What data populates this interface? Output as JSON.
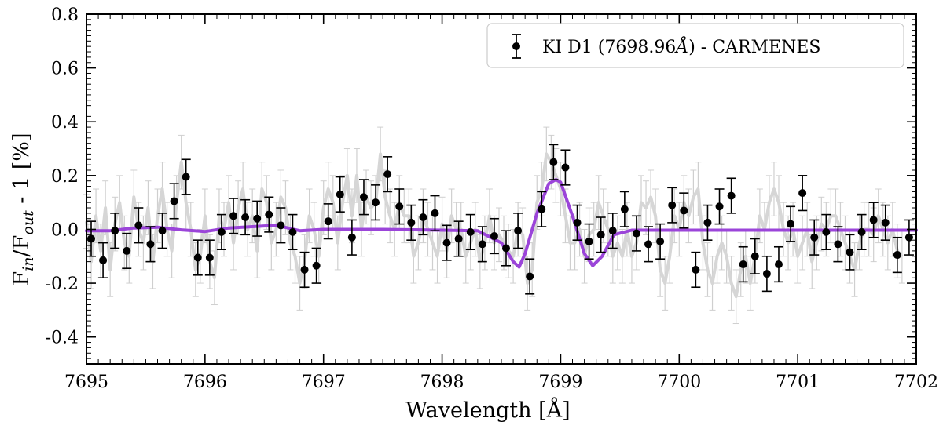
{
  "chart_data": {
    "type": "scatter",
    "title": "",
    "xlabel": "Wavelength [Å]",
    "ylabel": "F_in/F_out - 1 [%]",
    "ylabel_parts": {
      "f1": "F",
      "sub1": "in",
      "slash": "/F",
      "sub2": "out",
      "rest": " - 1 [%]"
    },
    "xlim": [
      7695,
      7702
    ],
    "ylim": [
      -0.5,
      0.8
    ],
    "x_ticks": [
      7695,
      7696,
      7697,
      7698,
      7699,
      7700,
      7701,
      7702
    ],
    "y_ticks": [
      -0.4,
      -0.2,
      0.0,
      0.2,
      0.4,
      0.6,
      0.8
    ],
    "y_tick_labels": [
      "-0.4",
      "-0.2",
      "0.0",
      "0.2",
      "0.4",
      "0.6",
      "0.8"
    ],
    "legend": {
      "position": "top-right",
      "label": "KI D1 (7698.96Å) - CARMENES",
      "label_parts": {
        "pre": "KI D1 (7698.96",
        "ital": "Å",
        "post": ") - CARMENES"
      }
    },
    "colors": {
      "binned": "#000000",
      "model": "#9b45d9",
      "unbinned": "#cfcfcf"
    },
    "binned_series": {
      "name": "KI D1 (7698.96Å) - CARMENES",
      "x": [
        7695.0,
        7695.1,
        7695.2,
        7695.3,
        7695.4,
        7695.5,
        7695.6,
        7695.7,
        7695.8,
        7695.9,
        7696.0,
        7696.1,
        7696.2,
        7696.3,
        7696.4,
        7696.5,
        7696.6,
        7696.7,
        7696.8,
        7696.9,
        7697.0,
        7697.1,
        7697.2,
        7697.3,
        7697.4,
        7697.5,
        7697.6,
        7697.7,
        7697.8,
        7697.9,
        7698.0,
        7698.1,
        7698.2,
        7698.3,
        7698.4,
        7698.5,
        7698.6,
        7698.7,
        7698.8,
        7698.9,
        7699.0,
        7699.1,
        7699.2,
        7699.3,
        7699.4,
        7699.5,
        7699.6,
        7699.7,
        7699.8,
        7699.9,
        7700.0,
        7700.1,
        7700.2,
        7700.3,
        7700.4,
        7700.5,
        7700.6,
        7700.7,
        7700.8,
        7700.9,
        7701.0,
        7701.1,
        7701.2,
        7701.3,
        7701.4,
        7701.5,
        7701.6,
        7701.7,
        7701.8,
        7701.9
      ],
      "y": [
        -0.035,
        -0.115,
        -0.005,
        -0.08,
        0.015,
        -0.055,
        -0.005,
        0.105,
        0.195,
        -0.105,
        -0.105,
        -0.01,
        0.05,
        0.045,
        0.04,
        0.055,
        0.015,
        -0.01,
        -0.15,
        -0.135,
        0.03,
        0.13,
        -0.03,
        0.12,
        0.1,
        0.205,
        0.085,
        0.025,
        0.045,
        0.06,
        -0.05,
        -0.035,
        -0.01,
        -0.055,
        -0.025,
        -0.07,
        -0.005,
        -0.175,
        0.075,
        0.25,
        0.23,
        0.025,
        -0.045,
        -0.02,
        -0.005,
        0.075,
        -0.015,
        -0.055,
        -0.045,
        0.09,
        0.07,
        -0.15,
        0.025,
        0.085,
        0.125,
        -0.13,
        -0.1,
        -0.165,
        -0.13,
        0.02,
        0.135,
        -0.03,
        -0.01,
        -0.055,
        -0.085,
        -0.01,
        0.035,
        0.025,
        -0.095,
        -0.03
      ],
      "yerr": 0.065
    },
    "model_series": {
      "name": "model",
      "x": [
        7695.0,
        7695.2,
        7695.4,
        7695.6,
        7695.8,
        7696.0,
        7696.2,
        7696.4,
        7696.6,
        7696.7,
        7696.8,
        7697.0,
        7697.5,
        7698.0,
        7698.3,
        7698.5,
        7698.6,
        7698.65,
        7698.7,
        7698.8,
        7698.9,
        7698.96,
        7699.0,
        7699.1,
        7699.2,
        7699.27,
        7699.35,
        7699.45,
        7699.6,
        7700.0,
        7701.0,
        7702.0
      ],
      "y": [
        -0.005,
        -0.005,
        0.005,
        0.008,
        -0.002,
        -0.008,
        0.005,
        0.01,
        0.015,
        0.005,
        -0.005,
        0.0,
        0.0,
        -0.003,
        -0.005,
        -0.05,
        -0.12,
        -0.14,
        -0.09,
        0.06,
        0.17,
        0.185,
        0.175,
        0.05,
        -0.09,
        -0.135,
        -0.1,
        -0.02,
        -0.003,
        -0.003,
        -0.003,
        -0.003
      ]
    },
    "unbinned_series": {
      "name": "unbinned",
      "x_start": 7695.0,
      "x_step": 0.04,
      "yerr": 0.1,
      "y": [
        0.03,
        -0.12,
        0.05,
        -0.08,
        0.08,
        -0.15,
        0.02,
        0.1,
        -0.05,
        -0.1,
        0.12,
        0.0,
        -0.05,
        0.08,
        -0.12,
        0.05,
        0.15,
        0.0,
        -0.08,
        0.1,
        0.25,
        0.1,
        0.0,
        -0.15,
        -0.1,
        0.05,
        -0.12,
        -0.18,
        0.05,
        0.0,
        0.1,
        -0.05,
        0.08,
        0.15,
        0.0,
        0.05,
        -0.08,
        0.15,
        0.1,
        -0.05,
        0.0,
        0.12,
        0.08,
        -0.05,
        -0.1,
        -0.2,
        -0.12,
        0.05,
        0.0,
        -0.1,
        0.08,
        0.15,
        0.1,
        -0.05,
        0.1,
        0.2,
        0.05,
        0.2,
        0.0,
        0.12,
        0.08,
        0.1,
        0.28,
        0.12,
        0.05,
        0.0,
        0.1,
        0.05,
        0.05,
        -0.1,
        -0.05,
        0.05,
        0.0,
        -0.05,
        -0.1,
        0.02,
        -0.08,
        0.05,
        0.0,
        0.0,
        -0.1,
        -0.05,
        0.0,
        -0.12,
        -0.05,
        0.05,
        -0.05,
        -0.02,
        -0.05,
        -0.08,
        -0.1,
        0.0,
        -0.02,
        -0.2,
        -0.15,
        0.1,
        0.15,
        0.28,
        0.25,
        0.2,
        0.15,
        0.05,
        -0.05,
        -0.05,
        0.0,
        -0.1,
        -0.02,
        0.0,
        0.1,
        0.05,
        0.0,
        -0.1,
        -0.05,
        -0.1,
        0.0,
        -0.1,
        -0.05,
        0.1,
        0.08,
        0.12,
        0.05,
        -0.15,
        -0.2,
        -0.1,
        0.05,
        0.0,
        0.1,
        0.05,
        0.12,
        0.15,
        -0.05,
        -0.15,
        -0.2,
        -0.1,
        -0.05,
        -0.1,
        -0.2,
        -0.25,
        -0.15,
        -0.1,
        -0.2,
        -0.1,
        0.05,
        0.0,
        0.1,
        0.15,
        0.1,
        0.0,
        -0.05,
        0.0,
        -0.1,
        -0.05,
        0.0,
        -0.12,
        -0.05,
        0.02,
        0.0,
        0.05,
        0.05,
        0.0,
        -0.05,
        -0.1,
        -0.15,
        -0.05,
        0.0,
        0.0,
        -0.02,
        0.05,
        0.0,
        -0.05,
        0.0,
        -0.08,
        -0.1
      ]
    }
  }
}
